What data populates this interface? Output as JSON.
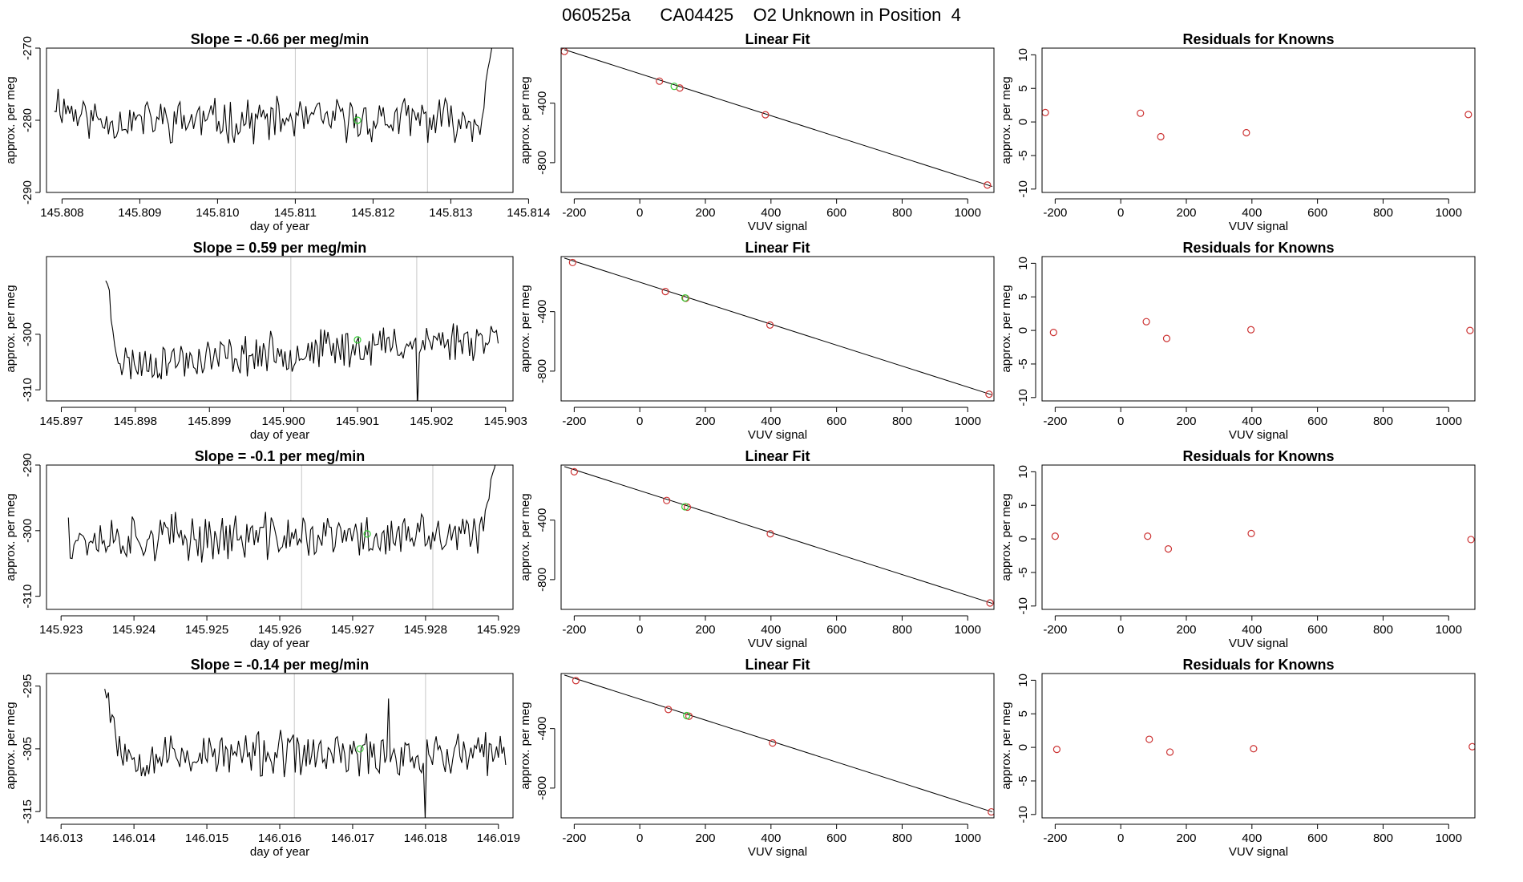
{
  "figure": {
    "title": "060525a      CA04425    O2 Unknown in Position  4"
  },
  "chart_data": [
    {
      "type": "line",
      "title": "Slope =  -0.66  per meg/min",
      "xlabel": "day of year",
      "ylabel": "approx. per meg",
      "xlim": [
        145.8078,
        145.8138
      ],
      "ylim": [
        -290,
        -270
      ],
      "xticks": [
        "145.808",
        "145.809",
        "145.810",
        "145.811",
        "145.812",
        "145.813",
        "145.814"
      ],
      "yticks": [
        "-290",
        "-280",
        "-270"
      ],
      "vlines": [
        145.811,
        145.8127
      ],
      "gen": {
        "seed": 11,
        "x0": 145.8079,
        "x1": 145.8136,
        "n": 230,
        "base": -280,
        "amp": 2.5,
        "start": -277,
        "startLen": 0.12,
        "endRise": -266
      },
      "highlight_point": {
        "x": 145.8118,
        "y": -280,
        "color": "#33cc33"
      },
      "trace_color": "#000000"
    },
    {
      "type": "scatter",
      "title": "Linear Fit",
      "xlabel": "VUV signal",
      "ylabel": "approx. per meg",
      "xlim": [
        -240,
        1080
      ],
      "ylim": [
        -1000,
        -30
      ],
      "xticks": [
        "-200",
        "0",
        "200",
        "400",
        "600",
        "800",
        "1000"
      ],
      "yticks": [
        "-800",
        "-400"
      ],
      "fit_line": {
        "x0": -230,
        "y0": -40,
        "x1": 1075,
        "y1": -960
      },
      "points": [
        {
          "x": -230,
          "y": -52,
          "color": "#cc3333"
        },
        {
          "x": 60,
          "y": -252,
          "color": "#cc3333"
        },
        {
          "x": 122,
          "y": -298,
          "color": "#cc3333"
        },
        {
          "x": 383,
          "y": -478,
          "color": "#cc3333"
        },
        {
          "x": 1060,
          "y": -950,
          "color": "#cc3333"
        },
        {
          "x": 105,
          "y": -287,
          "color": "#33cc33"
        }
      ]
    },
    {
      "type": "scatter",
      "title": "Residuals for Knowns",
      "xlabel": "VUV signal",
      "ylabel": "approx. per meg",
      "xlim": [
        -240,
        1080
      ],
      "ylim": [
        -10.5,
        11
      ],
      "xticks": [
        "-200",
        "0",
        "200",
        "400",
        "600",
        "800",
        "1000"
      ],
      "yticks": [
        "-10",
        "-5",
        "0",
        "5",
        "10"
      ],
      "points": [
        {
          "x": -230,
          "y": 1.4,
          "color": "#cc3333"
        },
        {
          "x": 60,
          "y": 1.3,
          "color": "#cc3333"
        },
        {
          "x": 122,
          "y": -2.2,
          "color": "#cc3333"
        },
        {
          "x": 383,
          "y": -1.6,
          "color": "#cc3333"
        },
        {
          "x": 1060,
          "y": 1.1,
          "color": "#cc3333"
        }
      ]
    },
    {
      "type": "line",
      "title": "Slope =  0.59  per meg/min",
      "xlabel": "day of year",
      "ylabel": "approx. per meg",
      "xlim": [
        145.8968,
        145.9031
      ],
      "ylim": [
        -312,
        -286
      ],
      "xticks": [
        "145.897",
        "145.898",
        "145.899",
        "145.900",
        "145.901",
        "145.902",
        "145.903"
      ],
      "yticks": [
        "-310",
        "-300"
      ],
      "vlines": [
        145.9001,
        145.9018
      ],
      "gen": {
        "seed": 23,
        "x0": 145.8976,
        "x1": 145.9029,
        "n": 220,
        "base": -303,
        "amp": 3.0,
        "start": -286,
        "startLen": 0.05,
        "trend": 5,
        "dip": {
          "x": 145.9018,
          "y": -313
        }
      },
      "highlight_point": {
        "x": 145.901,
        "y": -301,
        "color": "#33cc33"
      },
      "trace_color": "#000000"
    },
    {
      "type": "scatter",
      "title": "Linear Fit",
      "xlabel": "VUV signal",
      "ylabel": "approx. per meg",
      "xlim": [
        -240,
        1080
      ],
      "ylim": [
        -1000,
        -30
      ],
      "xticks": [
        "-200",
        "0",
        "200",
        "400",
        "600",
        "800",
        "1000"
      ],
      "yticks": [
        "-800",
        "-400"
      ],
      "fit_line": {
        "x0": -230,
        "y0": -40,
        "x1": 1075,
        "y1": -960
      },
      "points": [
        {
          "x": -205,
          "y": -70,
          "color": "#cc3333"
        },
        {
          "x": 78,
          "y": -265,
          "color": "#cc3333"
        },
        {
          "x": 140,
          "y": -310,
          "color": "#cc3333"
        },
        {
          "x": 397,
          "y": -490,
          "color": "#cc3333"
        },
        {
          "x": 1065,
          "y": -955,
          "color": "#cc3333"
        },
        {
          "x": 138,
          "y": -308,
          "color": "#33cc33"
        }
      ]
    },
    {
      "type": "scatter",
      "title": "Residuals for Knowns",
      "xlabel": "VUV signal",
      "ylabel": "approx. per meg",
      "xlim": [
        -240,
        1080
      ],
      "ylim": [
        -10.5,
        11
      ],
      "xticks": [
        "-200",
        "0",
        "200",
        "400",
        "600",
        "800",
        "1000"
      ],
      "yticks": [
        "-10",
        "-5",
        "0",
        "5",
        "10"
      ],
      "points": [
        {
          "x": -205,
          "y": -0.3,
          "color": "#cc3333"
        },
        {
          "x": 78,
          "y": 1.3,
          "color": "#cc3333"
        },
        {
          "x": 140,
          "y": -1.2,
          "color": "#cc3333"
        },
        {
          "x": 397,
          "y": 0.1,
          "color": "#cc3333"
        },
        {
          "x": 1065,
          "y": 0.0,
          "color": "#cc3333"
        }
      ]
    },
    {
      "type": "line",
      "title": "Slope =  -0.1  per meg/min",
      "xlabel": "day of year",
      "ylabel": "approx. per meg",
      "xlim": [
        145.9228,
        145.9292
      ],
      "ylim": [
        -312,
        -290
      ],
      "xticks": [
        "145.923",
        "145.924",
        "145.925",
        "145.926",
        "145.927",
        "145.928",
        "145.929"
      ],
      "yticks": [
        "-310",
        "-300",
        "-290"
      ],
      "vlines": [
        145.9263,
        145.9281
      ],
      "gen": {
        "seed": 37,
        "x0": 145.9231,
        "x1": 145.929,
        "n": 230,
        "base": -301,
        "amp": 3.0,
        "start": -298,
        "startLen": 0.0,
        "endRise": -287
      },
      "highlight_point": {
        "x": 145.9272,
        "y": -300.5,
        "color": "#33cc33"
      },
      "trace_color": "#000000"
    },
    {
      "type": "scatter",
      "title": "Linear Fit",
      "xlabel": "VUV signal",
      "ylabel": "approx. per meg",
      "xlim": [
        -240,
        1080
      ],
      "ylim": [
        -1000,
        -30
      ],
      "xticks": [
        "-200",
        "0",
        "200",
        "400",
        "600",
        "800",
        "1000"
      ],
      "yticks": [
        "-800",
        "-400"
      ],
      "fit_line": {
        "x0": -230,
        "y0": -40,
        "x1": 1075,
        "y1": -960
      },
      "points": [
        {
          "x": -200,
          "y": -75,
          "color": "#cc3333"
        },
        {
          "x": 82,
          "y": -268,
          "color": "#cc3333"
        },
        {
          "x": 145,
          "y": -313,
          "color": "#cc3333"
        },
        {
          "x": 398,
          "y": -492,
          "color": "#cc3333"
        },
        {
          "x": 1068,
          "y": -957,
          "color": "#cc3333"
        },
        {
          "x": 138,
          "y": -310,
          "color": "#33cc33"
        }
      ]
    },
    {
      "type": "scatter",
      "title": "Residuals for Knowns",
      "xlabel": "VUV signal",
      "ylabel": "approx. per meg",
      "xlim": [
        -240,
        1080
      ],
      "ylim": [
        -10.5,
        11
      ],
      "xticks": [
        "-200",
        "0",
        "200",
        "400",
        "600",
        "800",
        "1000"
      ],
      "yticks": [
        "-10",
        "-5",
        "0",
        "5",
        "10"
      ],
      "points": [
        {
          "x": -200,
          "y": 0.4,
          "color": "#cc3333"
        },
        {
          "x": 82,
          "y": 0.4,
          "color": "#cc3333"
        },
        {
          "x": 145,
          "y": -1.5,
          "color": "#cc3333"
        },
        {
          "x": 398,
          "y": 0.8,
          "color": "#cc3333"
        },
        {
          "x": 1068,
          "y": -0.1,
          "color": "#cc3333"
        }
      ]
    },
    {
      "type": "line",
      "title": "Slope =  -0.14  per meg/min",
      "xlabel": "day of year",
      "ylabel": "approx. per meg",
      "xlim": [
        146.0128,
        146.0192
      ],
      "ylim": [
        -316,
        -293
      ],
      "xticks": [
        "146.013",
        "146.014",
        "146.015",
        "146.016",
        "146.017",
        "146.018",
        "146.019"
      ],
      "yticks": [
        "-315",
        "-305",
        "-295"
      ],
      "vlines": [
        146.0162,
        146.018
      ],
      "gen": {
        "seed": 53,
        "x0": 146.0136,
        "x1": 146.0191,
        "n": 220,
        "base": -306,
        "amp": 3.0,
        "start": -293,
        "startLen": 0.06,
        "dip": {
          "x": 146.018,
          "y": -316
        },
        "spike": {
          "x": 146.0175,
          "y": -297
        }
      },
      "highlight_point": {
        "x": 146.0171,
        "y": -305,
        "color": "#33cc33"
      },
      "trace_color": "#000000"
    },
    {
      "type": "scatter",
      "title": "Linear Fit",
      "xlabel": "VUV signal",
      "ylabel": "approx. per meg",
      "xlim": [
        -240,
        1080
      ],
      "ylim": [
        -1000,
        -30
      ],
      "xticks": [
        "-200",
        "0",
        "200",
        "400",
        "600",
        "800",
        "1000"
      ],
      "yticks": [
        "-800",
        "-400"
      ],
      "fit_line": {
        "x0": -230,
        "y0": -40,
        "x1": 1075,
        "y1": -960
      },
      "points": [
        {
          "x": -195,
          "y": -78,
          "color": "#cc3333"
        },
        {
          "x": 87,
          "y": -272,
          "color": "#cc3333"
        },
        {
          "x": 150,
          "y": -317,
          "color": "#cc3333"
        },
        {
          "x": 405,
          "y": -497,
          "color": "#cc3333"
        },
        {
          "x": 1072,
          "y": -960,
          "color": "#cc3333"
        },
        {
          "x": 143,
          "y": -313,
          "color": "#33cc33"
        }
      ]
    },
    {
      "type": "scatter",
      "title": "Residuals for Knowns",
      "xlabel": "VUV signal",
      "ylabel": "approx. per meg",
      "xlim": [
        -240,
        1080
      ],
      "ylim": [
        -10.5,
        11
      ],
      "xticks": [
        "-200",
        "0",
        "200",
        "400",
        "600",
        "800",
        "1000"
      ],
      "yticks": [
        "-10",
        "-5",
        "0",
        "5",
        "10"
      ],
      "points": [
        {
          "x": -195,
          "y": -0.3,
          "color": "#cc3333"
        },
        {
          "x": 87,
          "y": 1.2,
          "color": "#cc3333"
        },
        {
          "x": 150,
          "y": -0.7,
          "color": "#cc3333"
        },
        {
          "x": 405,
          "y": -0.2,
          "color": "#cc3333"
        },
        {
          "x": 1072,
          "y": 0.1,
          "color": "#cc3333"
        }
      ]
    }
  ]
}
